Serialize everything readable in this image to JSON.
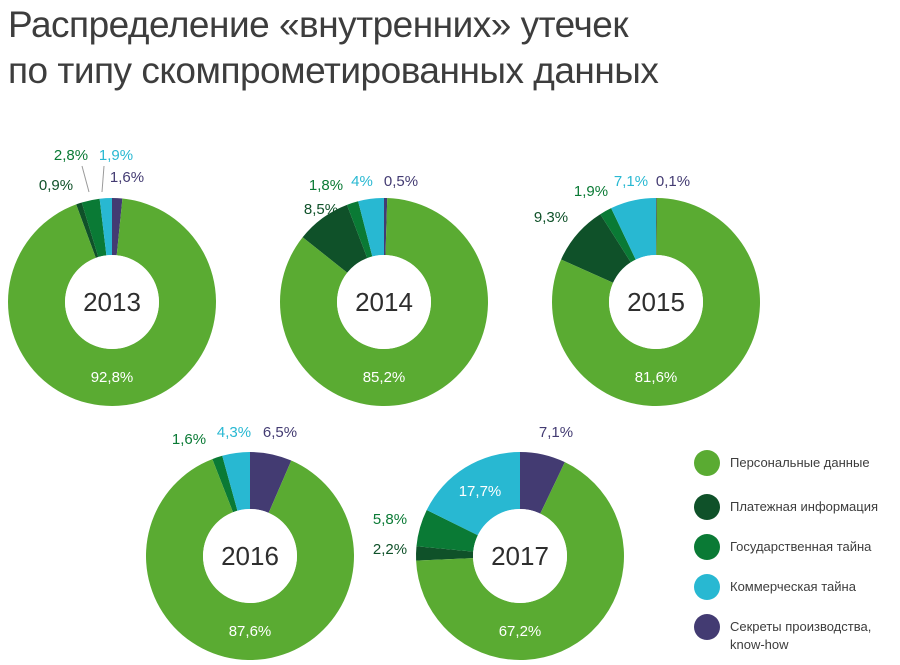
{
  "title": {
    "line1": "Распределение «внутренних» утечек",
    "line2": "по типу скомпрометированных данных"
  },
  "colors": {
    "personal": "#5aab32",
    "payment": "#0f5129",
    "state": "#0a7a35",
    "commercial": "#28b8d2",
    "secrets": "#433b72"
  },
  "chart_data": {
    "type": "pie",
    "categories": [
      "Персональные данные",
      "Платежная информация",
      "Государственная тайна",
      "Коммерческая тайна",
      "Секреты производства,\nknow-how"
    ],
    "category_keys": [
      "personal",
      "payment",
      "state",
      "commercial",
      "secrets"
    ],
    "legend_position": "bottom-right",
    "charts": [
      {
        "year": "2013",
        "values": [
          92.8,
          0.9,
          2.8,
          1.9,
          1.6
        ],
        "labels": [
          "92,8%",
          "0,9%",
          "2,8%",
          "1,9%",
          "1,6%"
        ]
      },
      {
        "year": "2014",
        "values": [
          85.2,
          8.5,
          1.8,
          4.0,
          0.5
        ],
        "labels": [
          "85,2%",
          "8,5%",
          "1,8%",
          "4%",
          "0,5%"
        ]
      },
      {
        "year": "2015",
        "values": [
          81.6,
          9.3,
          1.9,
          7.1,
          0.1
        ],
        "labels": [
          "81,6%",
          "9,3%",
          "1,9%",
          "7,1%",
          "0,1%"
        ]
      },
      {
        "year": "2016",
        "values": [
          87.6,
          0.0,
          1.6,
          4.3,
          6.5
        ],
        "labels": [
          "87,6%",
          "",
          "1,6%",
          "4,3%",
          "6,5%"
        ]
      },
      {
        "year": "2017",
        "values": [
          67.2,
          2.2,
          5.8,
          17.7,
          7.1
        ],
        "labels": [
          "67,2%",
          "2,2%",
          "5,8%",
          "17,7%",
          "7,1%"
        ]
      }
    ]
  }
}
